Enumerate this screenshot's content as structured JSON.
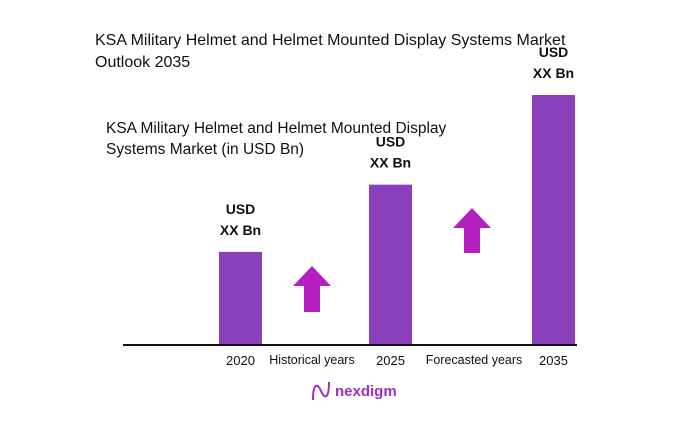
{
  "chart_data": {
    "type": "bar",
    "title": "KSA Military Helmet and Helmet Mounted Display Systems Market Outlook 2035",
    "subtitle": "KSA Military Helmet and Helmet Mounted Display Systems Market (in USD Bn)",
    "categories": [
      "2020",
      "2025",
      "2035"
    ],
    "values": [
      3.7,
      6.4,
      10
    ],
    "data_labels": [
      "USD\nXX Bn",
      "USD\nXX Bn",
      "USD\nXX Bn"
    ],
    "period_labels": [
      "Historical years",
      "Forecasted years"
    ],
    "ylim": [
      0,
      10
    ],
    "grid": false,
    "bar_color": "#8a3fbb",
    "arrow_color": "#b51fbf",
    "xlabel": "",
    "ylabel": ""
  },
  "logo": {
    "text": "nexdigm",
    "color": "#9b2fc9"
  }
}
